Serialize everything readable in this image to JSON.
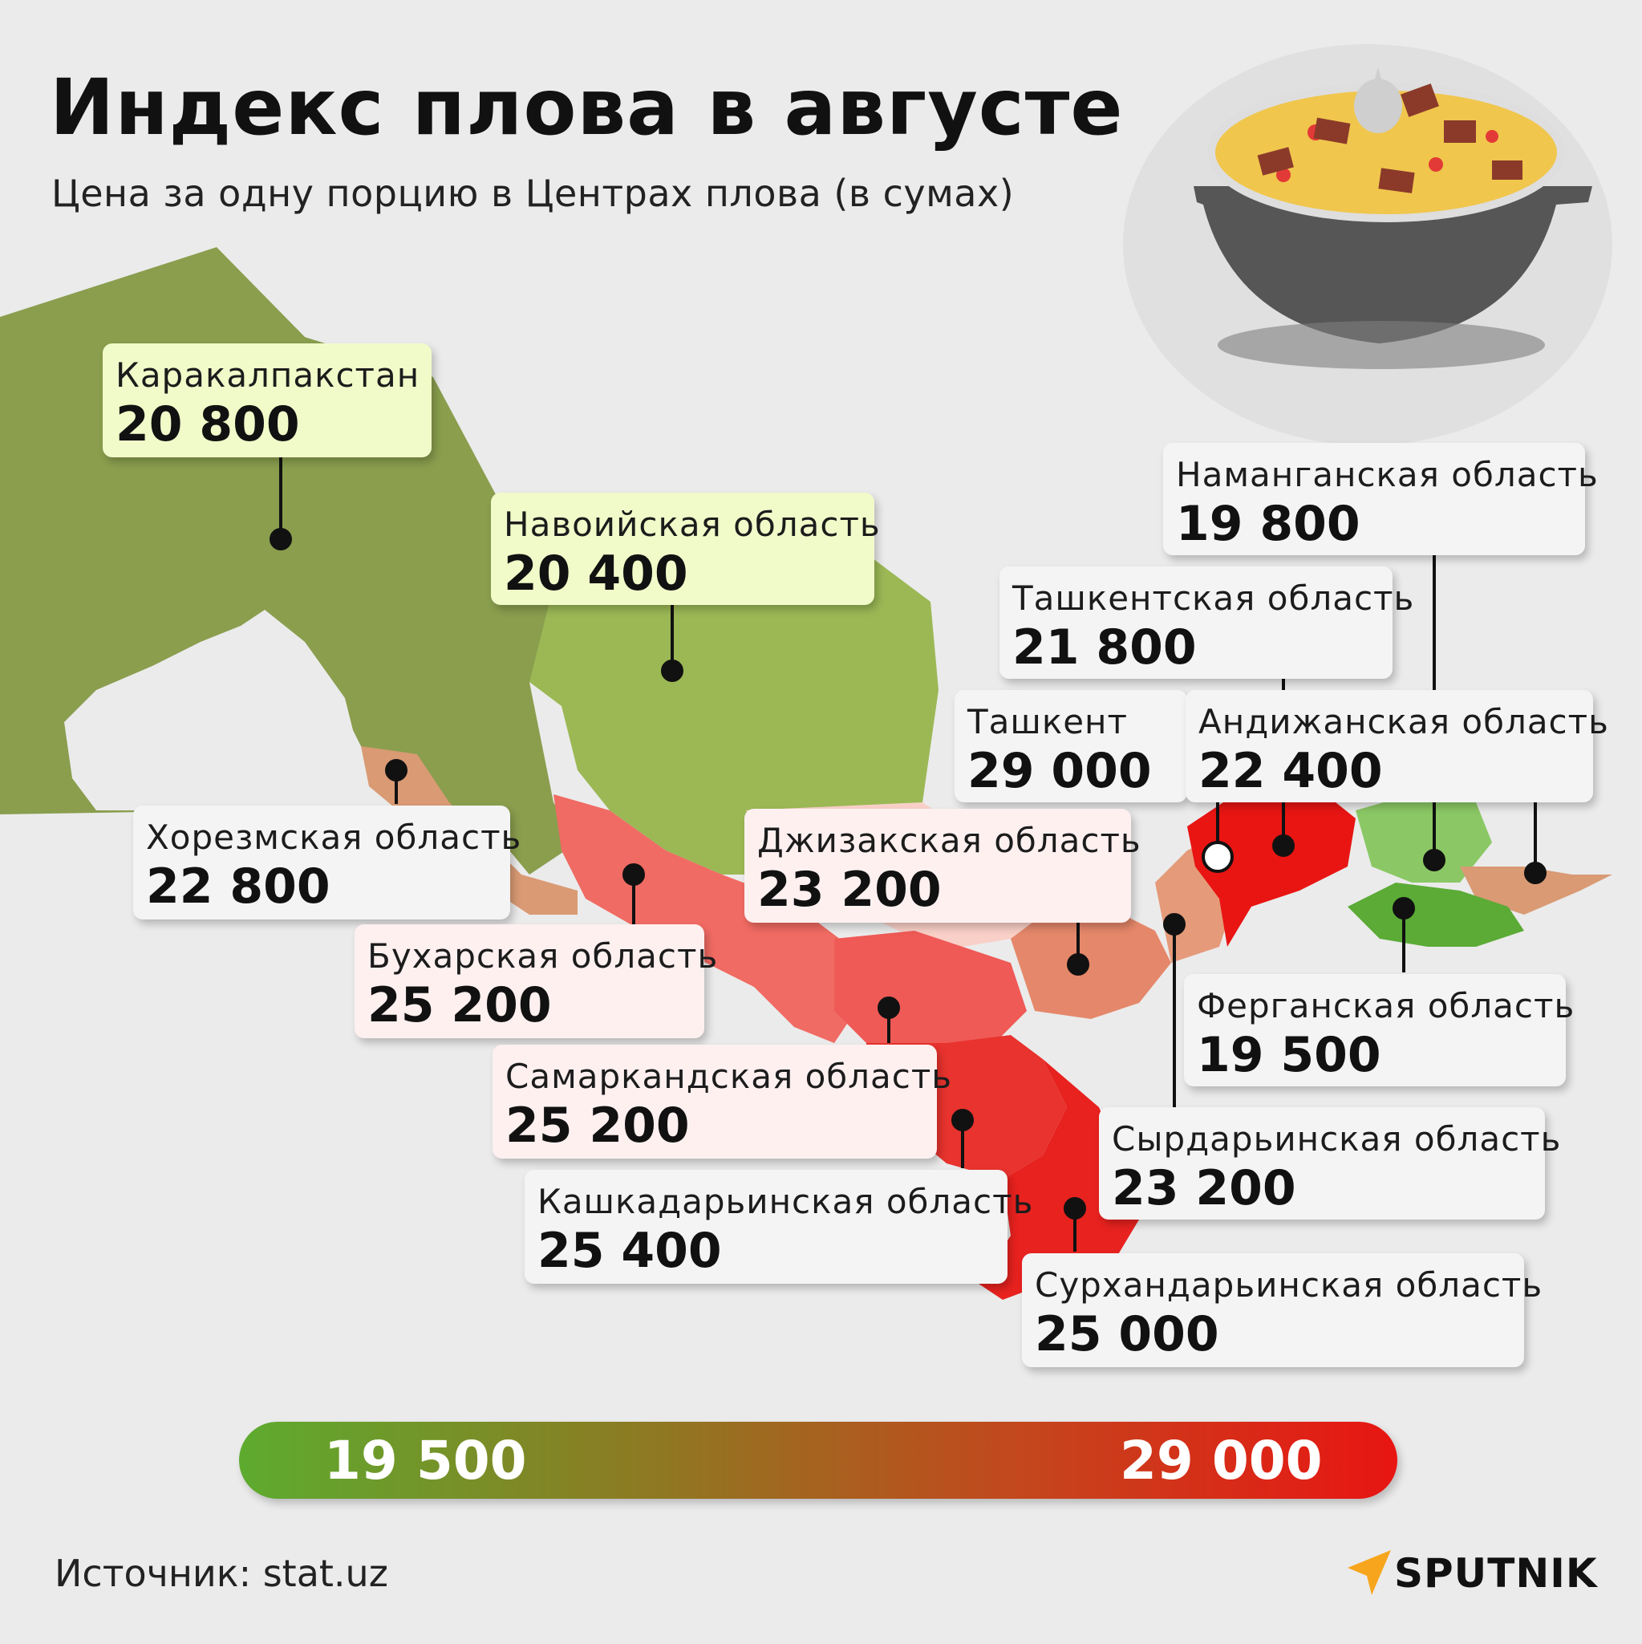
{
  "header": {
    "title": "Индекс плова в августе",
    "subtitle": "Цена за одну порцию в Центрах плова (в сумах)"
  },
  "regions": [
    {
      "name": "Каракалпакстан",
      "value": "20 800"
    },
    {
      "name": "Навоийская область",
      "value": "20 400"
    },
    {
      "name": "Наманганская область",
      "value": "19 800"
    },
    {
      "name": "Ташкентская область",
      "value": "21 800"
    },
    {
      "name": "Ташкент",
      "value": "29 000"
    },
    {
      "name": "Андижанская область",
      "value": "22 400"
    },
    {
      "name": "Хорезмская область",
      "value": "22 800"
    },
    {
      "name": "Джизакская область",
      "value": "23 200"
    },
    {
      "name": "Бухарская область",
      "value": "25 200"
    },
    {
      "name": "Ферганская область",
      "value": "19 500"
    },
    {
      "name": "Самаркандская область",
      "value": "25 200"
    },
    {
      "name": "Сырдарьинская область",
      "value": "23 200"
    },
    {
      "name": "Кашкадарьинская область",
      "value": "25 400"
    },
    {
      "name": "Сурхандарьинская область",
      "value": "25 000"
    }
  ],
  "legend": {
    "min": "19 500",
    "max": "29 000",
    "colors": {
      "low": "#5dab2f",
      "high": "#e81513"
    }
  },
  "footer": {
    "source": "Источник: stat.uz",
    "brand": "SPUTNIK",
    "brand_icon": "sputnik-logo-icon"
  }
}
